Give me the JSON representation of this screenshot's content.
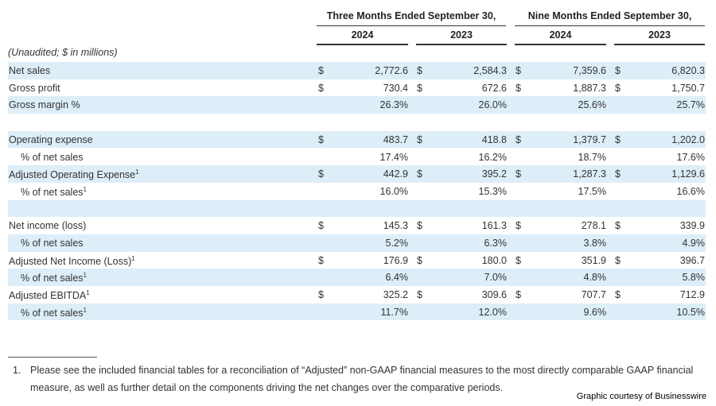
{
  "header": {
    "periods": [
      {
        "title": "Three Months Ended September 30,",
        "years": [
          "2024",
          "2023"
        ]
      },
      {
        "title": "Nine Months Ended September 30,",
        "years": [
          "2024",
          "2023"
        ]
      }
    ],
    "note": "(Unaudited; $ in millions)"
  },
  "table": {
    "groups": [
      [
        {
          "label": "Net sales",
          "cells": [
            {
              "currency": "$",
              "value": "2,772.6"
            },
            {
              "currency": "$",
              "value": "2,584.3"
            },
            {
              "currency": "$",
              "value": "7,359.6"
            },
            {
              "currency": "$",
              "value": "6,820.3"
            }
          ]
        },
        {
          "label": "Gross profit",
          "cells": [
            {
              "currency": "$",
              "value": "730.4"
            },
            {
              "currency": "$",
              "value": "672.6"
            },
            {
              "currency": "$",
              "value": "1,887.3"
            },
            {
              "currency": "$",
              "value": "1,750.7"
            }
          ]
        },
        {
          "label": "Gross margin %",
          "cells": [
            {
              "value": "26.3%"
            },
            {
              "value": "26.0%"
            },
            {
              "value": "25.6%"
            },
            {
              "value": "25.7%"
            }
          ]
        }
      ],
      [
        {
          "label": "Operating expense",
          "cells": [
            {
              "currency": "$",
              "value": "483.7"
            },
            {
              "currency": "$",
              "value": "418.8"
            },
            {
              "currency": "$",
              "value": "1,379.7"
            },
            {
              "currency": "$",
              "value": "1,202.0"
            }
          ]
        },
        {
          "label": "% of net sales",
          "indent": true,
          "cells": [
            {
              "value": "17.4%"
            },
            {
              "value": "16.2%"
            },
            {
              "value": "18.7%"
            },
            {
              "value": "17.6%"
            }
          ]
        },
        {
          "label": "Adjusted Operating Expense",
          "sup": "1",
          "cells": [
            {
              "currency": "$",
              "value": "442.9"
            },
            {
              "currency": "$",
              "value": "395.2"
            },
            {
              "currency": "$",
              "value": "1,287.3"
            },
            {
              "currency": "$",
              "value": "1,129.6"
            }
          ]
        },
        {
          "label": "% of net sales",
          "sup": "1",
          "indent": true,
          "cells": [
            {
              "value": "16.0%"
            },
            {
              "value": "15.3%"
            },
            {
              "value": "17.5%"
            },
            {
              "value": "16.6%"
            }
          ]
        }
      ],
      [
        {
          "label": "Net income (loss)",
          "cells": [
            {
              "currency": "$",
              "value": "145.3"
            },
            {
              "currency": "$",
              "value": "161.3"
            },
            {
              "currency": "$",
              "value": "278.1"
            },
            {
              "currency": "$",
              "value": "339.9"
            }
          ]
        },
        {
          "label": "% of net sales",
          "indent": true,
          "cells": [
            {
              "value": "5.2%"
            },
            {
              "value": "6.3%"
            },
            {
              "value": "3.8%"
            },
            {
              "value": "4.9%"
            }
          ]
        },
        {
          "label": "Adjusted Net Income (Loss)",
          "sup": "1",
          "cells": [
            {
              "currency": "$",
              "value": "176.9"
            },
            {
              "currency": "$",
              "value": "180.0"
            },
            {
              "currency": "$",
              "value": "351.9"
            },
            {
              "currency": "$",
              "value": "396.7"
            }
          ]
        },
        {
          "label": "% of net sales",
          "sup": "1",
          "indent": true,
          "cells": [
            {
              "value": "6.4%"
            },
            {
              "value": "7.0%"
            },
            {
              "value": "4.8%"
            },
            {
              "value": "5.8%"
            }
          ]
        },
        {
          "label": "Adjusted EBITDA",
          "sup": "1",
          "cells": [
            {
              "currency": "$",
              "value": "325.2"
            },
            {
              "currency": "$",
              "value": "309.6"
            },
            {
              "currency": "$",
              "value": "707.7"
            },
            {
              "currency": "$",
              "value": "712.9"
            }
          ]
        },
        {
          "label": "% of net sales",
          "sup": "1",
          "indent": true,
          "cells": [
            {
              "value": "11.7%"
            },
            {
              "value": "12.0%"
            },
            {
              "value": "9.6%"
            },
            {
              "value": "10.5%"
            }
          ]
        }
      ]
    ]
  },
  "footnote": {
    "number": "1.",
    "text": "Please see the included financial tables for a reconciliation of “Adjusted” non-GAAP financial measures to the most directly comparable GAAP financial measure, as well as further detail on the components driving the net changes over the comparative periods."
  },
  "credit": "Graphic courtesy of Businesswire"
}
